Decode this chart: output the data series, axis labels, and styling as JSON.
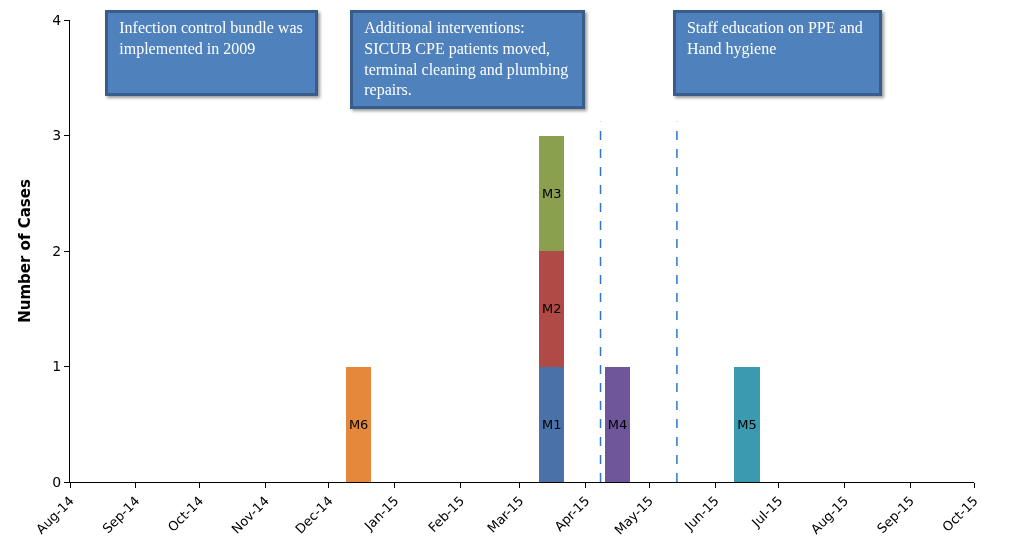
{
  "chart_data": {
    "type": "bar",
    "stacked": true,
    "ylabel": "Number of Cases",
    "legend": false,
    "grid": false,
    "annotations": [
      "Infection control bundle was implemented in 2009",
      "Additional interventions: SICUB CPE patients moved, terminal cleaning  and  plumbing repairs.",
      "Staff education on PPE and Hand hygiene"
    ],
    "x": [
      "2014-12-15",
      "2015-03-16",
      "2015-04-16",
      "2015-06-16"
    ],
    "series": [
      {
        "name": "M6",
        "color": "#e6883c",
        "values": [
          1,
          null,
          null,
          null
        ]
      },
      {
        "name": "M1",
        "color": "#4a72a8",
        "values": [
          null,
          1,
          null,
          null
        ]
      },
      {
        "name": "M2",
        "color": "#b04a46",
        "values": [
          null,
          1,
          null,
          null
        ]
      },
      {
        "name": "M3",
        "color": "#8ba04e",
        "values": [
          null,
          1,
          null,
          null
        ]
      },
      {
        "name": "M4",
        "color": "#6f559a",
        "values": [
          null,
          null,
          1,
          null
        ]
      },
      {
        "name": "M5",
        "color": "#3a9bb0",
        "values": [
          null,
          null,
          null,
          1
        ]
      }
    ],
    "ref_lines": [
      {
        "axis": "x",
        "value": "2015-04-08",
        "color": "#2e75c9",
        "line_style": "dashed"
      },
      {
        "axis": "x",
        "value": "2015-05-14",
        "color": "#2e75c9",
        "line_style": "dashed"
      }
    ],
    "xlim": [
      "2014-08-01",
      "2015-10-01"
    ],
    "xticks": [
      {
        "value": "2014-08-01",
        "label": "Aug-14"
      },
      {
        "value": "2014-09-01",
        "label": "Sep-14"
      },
      {
        "value": "2014-10-01",
        "label": "Oct-14"
      },
      {
        "value": "2014-11-01",
        "label": "Nov-14"
      },
      {
        "value": "2014-12-01",
        "label": "Dec-14"
      },
      {
        "value": "2015-01-01",
        "label": "Jan-15"
      },
      {
        "value": "2015-02-01",
        "label": "Feb-15"
      },
      {
        "value": "2015-03-01",
        "label": "Mar-15"
      },
      {
        "value": "2015-04-01",
        "label": "Apr-15"
      },
      {
        "value": "2015-05-01",
        "label": "May-15"
      },
      {
        "value": "2015-06-01",
        "label": "Jun-15"
      },
      {
        "value": "2015-07-01",
        "label": "Jul-15"
      },
      {
        "value": "2015-08-01",
        "label": "Aug-15"
      },
      {
        "value": "2015-09-01",
        "label": "Sep-15"
      },
      {
        "value": "2015-10-01",
        "label": "Oct-15"
      }
    ],
    "ylim": [
      0,
      4
    ],
    "yticks": [
      0,
      1,
      2,
      3,
      4
    ]
  }
}
